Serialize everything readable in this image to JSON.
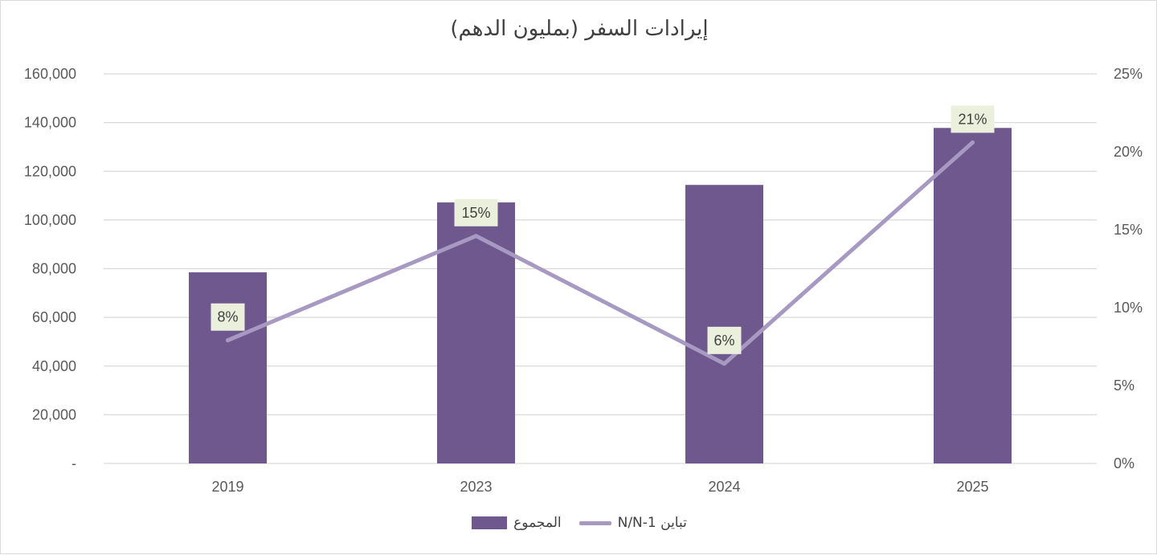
{
  "chart_data": {
    "type": "bar",
    "title": "إيرادات السفر (بمليون الدهم)",
    "categories": [
      "2019",
      "2023",
      "2024",
      "2025"
    ],
    "series": [
      {
        "name": "المجموع",
        "type": "bar",
        "axis": "left",
        "values": [
          78500,
          107200,
          114400,
          137800
        ]
      },
      {
        "name": "تباين N/N-1",
        "type": "line",
        "axis": "right",
        "values": [
          7.9,
          14.6,
          6.4,
          20.6
        ],
        "data_labels": [
          "8%",
          "15%",
          "6%",
          "21%"
        ]
      }
    ],
    "y_left": {
      "ylim": [
        0,
        160000
      ],
      "ticks": [
        "-",
        "20,000",
        "40,000",
        "60,000",
        "80,000",
        "100,000",
        "120,000",
        "140,000",
        "160,000"
      ]
    },
    "y_right": {
      "ylim": [
        0,
        25
      ],
      "ticks": [
        "0%",
        "5%",
        "10%",
        "15%",
        "20%",
        "25%"
      ]
    },
    "grid": true,
    "legend_position": "bottom",
    "colors": {
      "bar": "#6e588e",
      "line": "#a799c2",
      "label_box": "#eaf0dc",
      "grid": "#d9d9d9",
      "text": "#595959"
    }
  }
}
